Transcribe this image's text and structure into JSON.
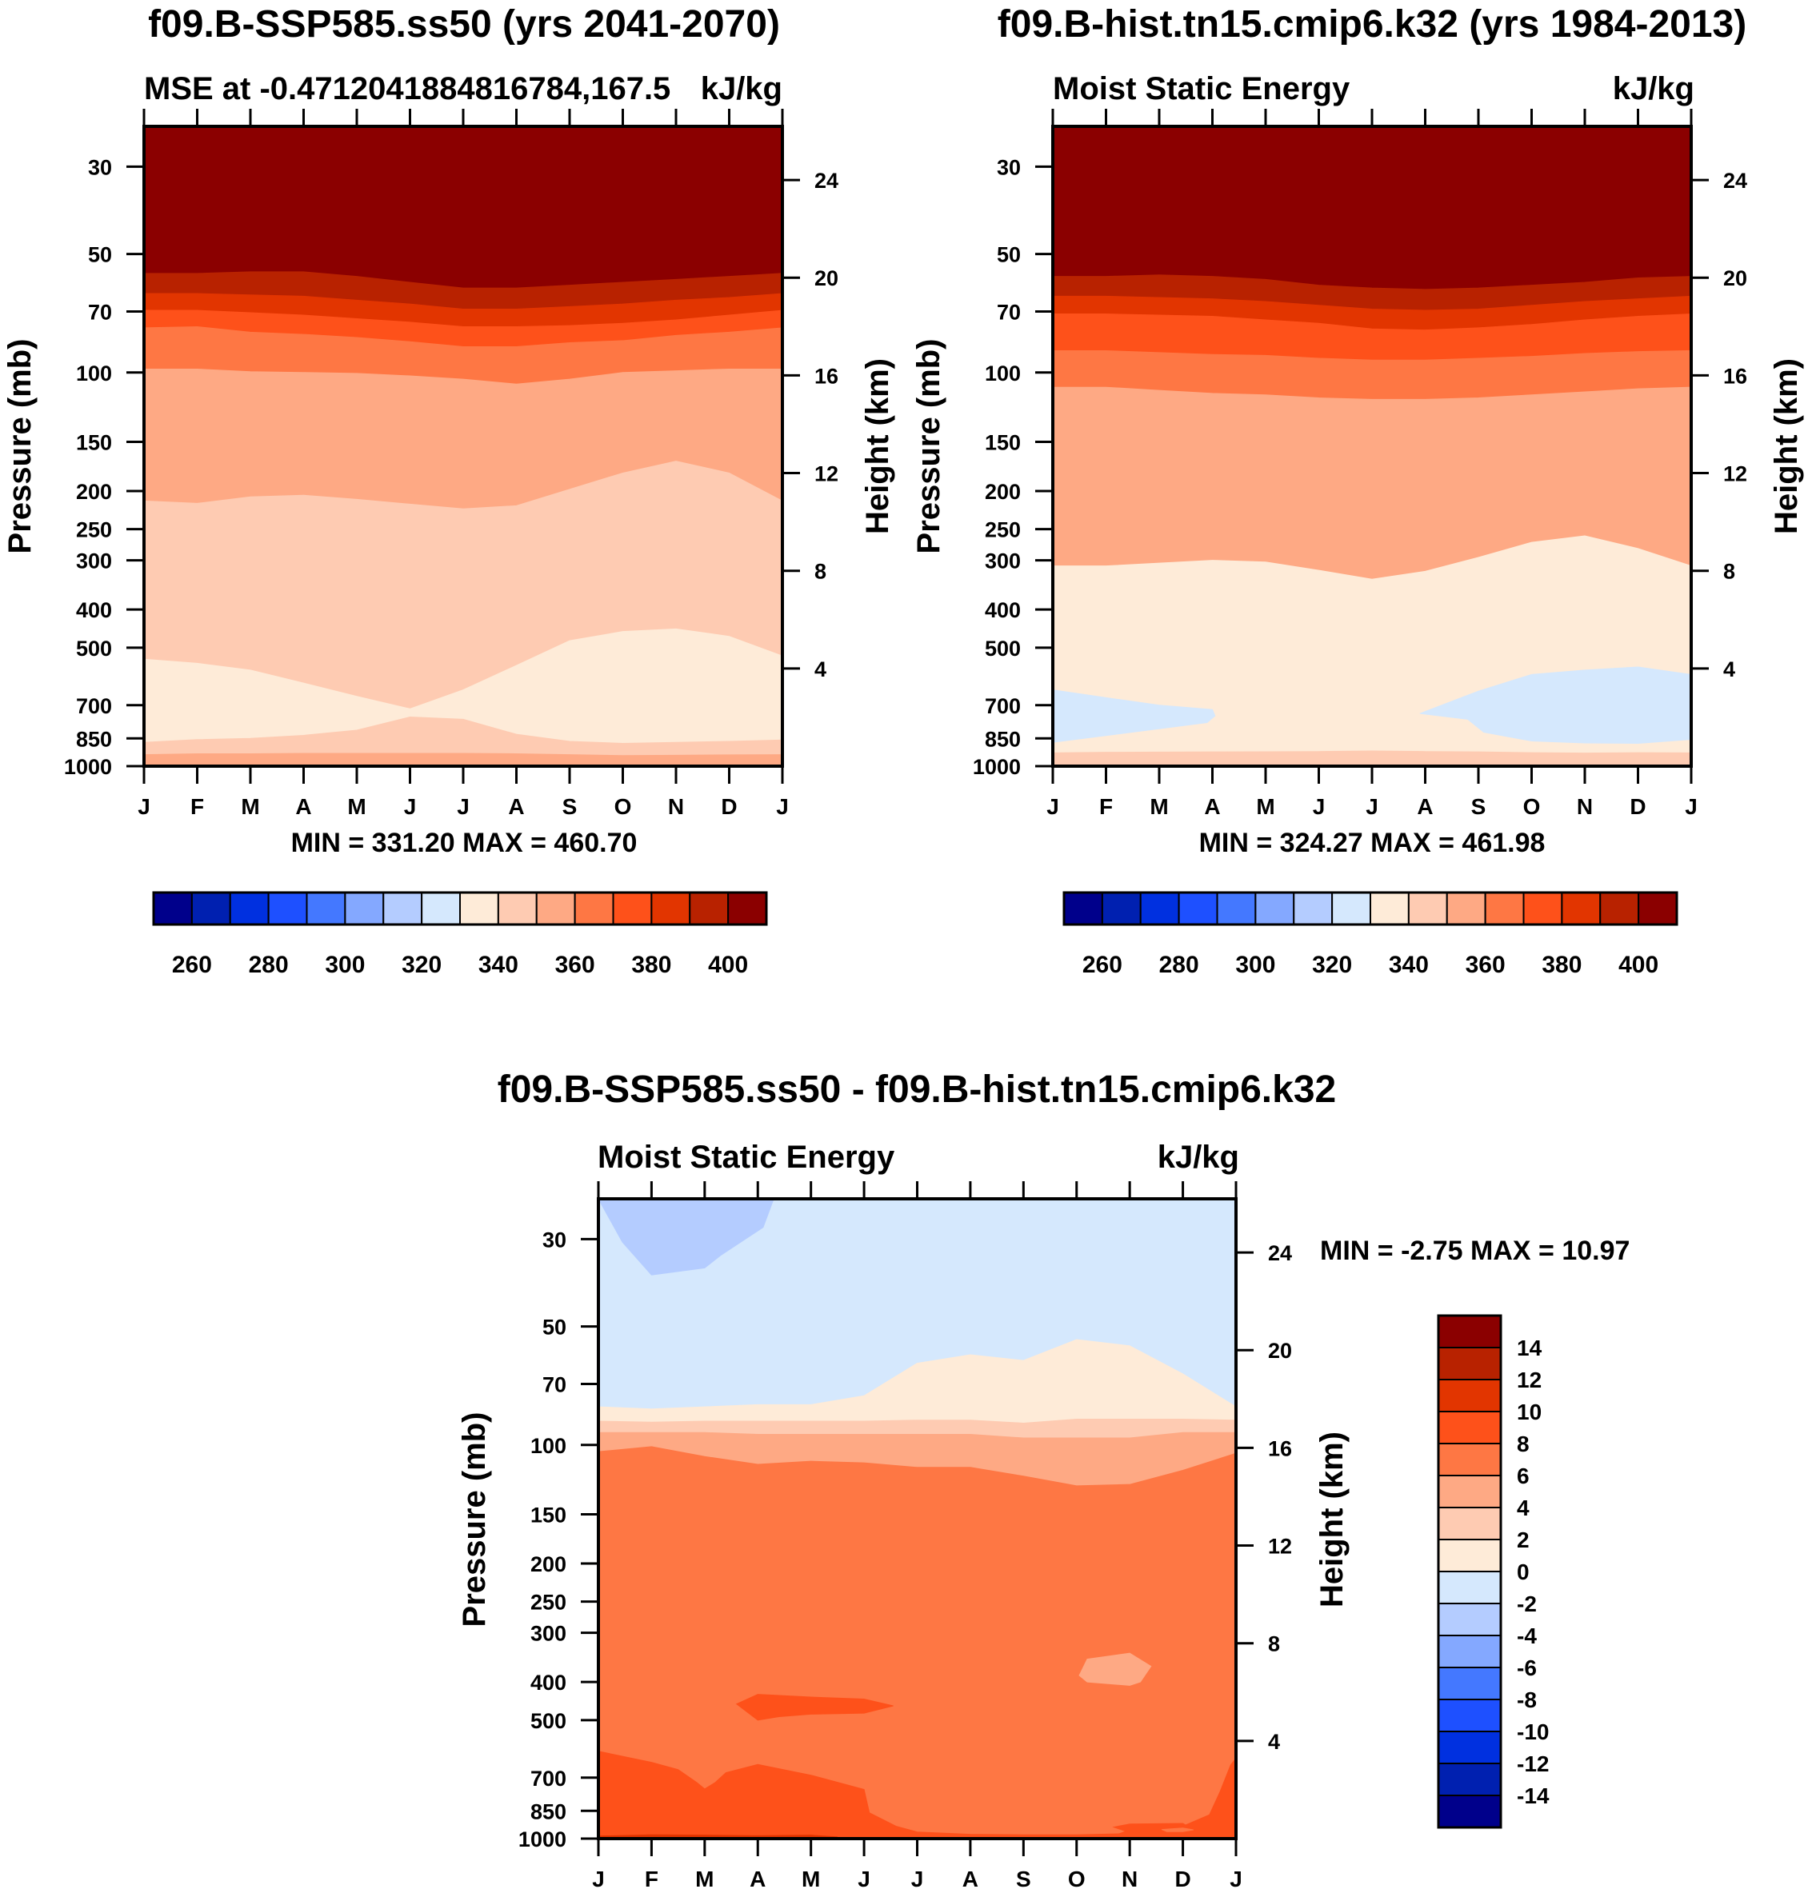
{
  "figure": {
    "variable_units": "kJ/kg",
    "pressure_axis_label": "Pressure (mb)",
    "height_axis_label": "Height (km)"
  },
  "chart_data": [
    {
      "id": "future",
      "type": "heatmap",
      "title": "f09.B-SSP585.ss50 (yrs 2041-2070)",
      "left_subtitle": "MSE at -0.4712041884816784,167.5",
      "right_subtitle": "kJ/kg",
      "xlabel": "",
      "ylabel": "Pressure (mb)",
      "ylabel_right": "Height (km)",
      "x_ticks": [
        "J",
        "F",
        "M",
        "A",
        "M",
        "J",
        "J",
        "A",
        "S",
        "O",
        "N",
        "D",
        "J"
      ],
      "y_ticks": [
        30,
        50,
        70,
        100,
        150,
        200,
        250,
        300,
        400,
        500,
        700,
        850,
        1000
      ],
      "y_ticks_right": [
        24,
        20,
        16,
        12,
        8,
        4
      ],
      "ylim": [
        1000,
        23.7
      ],
      "yscale": "log",
      "stats": "MIN = 331.20 MAX = 460.70",
      "colorbar": {
        "orientation": "horizontal",
        "levels": [
          260,
          270,
          280,
          290,
          300,
          310,
          320,
          330,
          340,
          350,
          360,
          370,
          380,
          390,
          400
        ],
        "labels": [
          "260",
          "280",
          "300",
          "320",
          "340",
          "360",
          "380",
          "400"
        ]
      },
      "bands_note": "Each band: color index into palette; top/bottom pressure boundaries (mb) at 13 monthly nodes Jan..Jan",
      "bands": [
        {
          "color": 15,
          "top": "ptop",
          "bottom": [
            56,
            56,
            55.5,
            55.5,
            57,
            59,
            61,
            61,
            60,
            59,
            58,
            57,
            56
          ]
        },
        {
          "color": 14,
          "top": "prev",
          "bottom": [
            63,
            63,
            63.5,
            64,
            65.5,
            67,
            69,
            69,
            68,
            67,
            65.5,
            64.5,
            63
          ]
        },
        {
          "color": 13,
          "top": "prev",
          "bottom": [
            69.5,
            69.5,
            70.5,
            71.5,
            73,
            74.5,
            76.5,
            76.5,
            76,
            75,
            73.5,
            71.5,
            69.5
          ]
        },
        {
          "color": 12,
          "top": "prev",
          "bottom": [
            77,
            76.5,
            79,
            80,
            81.5,
            83.5,
            86,
            86,
            84,
            83,
            80.5,
            79,
            77
          ]
        },
        {
          "color": 11,
          "top": "prev",
          "bottom": [
            98,
            98,
            99.5,
            100,
            100.5,
            102,
            104,
            107,
            104,
            100,
            99,
            98,
            98
          ]
        },
        {
          "color": 10,
          "top": "prev",
          "bottom": [
            212,
            215,
            207,
            205,
            210,
            216,
            222,
            218,
            198,
            180,
            168,
            180,
            212
          ]
        },
        {
          "color": 9,
          "top": "prev",
          "bottom": [
            535,
            548,
            570,
            615,
            665,
            715,
            640,
            555,
            480,
            455,
            448,
            468,
            525
          ]
        },
        {
          "color": 8,
          "top": "prev",
          "bottom": [
            870,
            856,
            850,
            835,
            810,
            750,
            760,
            830,
            865,
            875,
            870,
            865,
            858
          ]
        },
        {
          "color": 9,
          "top": "prev",
          "bottom": [
            935,
            930,
            930,
            928,
            928,
            928,
            928,
            930,
            935,
            940,
            938,
            936,
            935
          ]
        },
        {
          "color": 10,
          "top": "prev",
          "bottom": "pbot"
        }
      ]
    },
    {
      "id": "historical",
      "type": "heatmap",
      "title": "f09.B-hist.tn15.cmip6.k32 (yrs 1984-2013)",
      "left_subtitle": "Moist Static Energy",
      "right_subtitle": "kJ/kg",
      "xlabel": "",
      "ylabel": "Pressure (mb)",
      "ylabel_right": "Height (km)",
      "x_ticks": [
        "J",
        "F",
        "M",
        "A",
        "M",
        "J",
        "J",
        "A",
        "S",
        "O",
        "N",
        "D",
        "J"
      ],
      "y_ticks": [
        30,
        50,
        70,
        100,
        150,
        200,
        250,
        300,
        400,
        500,
        700,
        850,
        1000
      ],
      "y_ticks_right": [
        24,
        20,
        16,
        12,
        8,
        4
      ],
      "ylim": [
        1000,
        23.7
      ],
      "yscale": "log",
      "stats": "MIN = 324.27 MAX = 461.98",
      "colorbar": {
        "orientation": "horizontal",
        "levels": [
          260,
          270,
          280,
          290,
          300,
          310,
          320,
          330,
          340,
          350,
          360,
          370,
          380,
          390,
          400
        ],
        "labels": [
          "260",
          "280",
          "300",
          "320",
          "340",
          "360",
          "380",
          "400"
        ]
      },
      "bands": [
        {
          "color": 15,
          "top": "ptop",
          "bottom": [
            57,
            57,
            56.5,
            57,
            58,
            60,
            61,
            61.5,
            61,
            60,
            59,
            57.5,
            57
          ]
        },
        {
          "color": 14,
          "top": "prev",
          "bottom": [
            64,
            64,
            64.5,
            65,
            66,
            67.5,
            69,
            69.5,
            69,
            67.5,
            66,
            65,
            64
          ]
        },
        {
          "color": 13,
          "top": "prev",
          "bottom": [
            71,
            71,
            71.5,
            72,
            73.5,
            75,
            77.5,
            78,
            77,
            75.5,
            73.5,
            72,
            71
          ]
        },
        {
          "color": 12,
          "top": "prev",
          "bottom": [
            88,
            88,
            89,
            90,
            90.5,
            92,
            93,
            93,
            92,
            91,
            89.5,
            88.5,
            88
          ]
        },
        {
          "color": 11,
          "top": "prev",
          "bottom": [
            109,
            109,
            111,
            113,
            114,
            116,
            117,
            117,
            116,
            114,
            112,
            110,
            109
          ]
        },
        {
          "color": 10,
          "top": "prev",
          "bottom": [
            310,
            310,
            305,
            300,
            303,
            318,
            335,
            320,
            295,
            270,
            260,
            280,
            310
          ]
        },
        {
          "color": 8,
          "top": "prev",
          "bottom": "pbot",
          "holes": [
            {
              "x": [
                0,
                1,
                2,
                3,
                3.05,
                2.9,
                0
              ],
              "p": [
                640,
                670,
                700,
                718,
                745,
                775,
                870
              ]
            },
            {
              "x": [
                6.9,
                8,
                9,
                10,
                11,
                12,
                12,
                11,
                10,
                9,
                8.1,
                7.8
              ],
              "p": [
                735,
                645,
                585,
                570,
                560,
                585,
                855,
                875,
                873,
                863,
                820,
                760
              ]
            }
          ]
        },
        {
          "color": 9,
          "top": [
            925,
            922,
            921,
            920,
            919,
            918,
            915,
            918,
            920,
            924,
            926,
            924,
            925
          ],
          "bottom": "pbot"
        }
      ]
    },
    {
      "id": "difference",
      "type": "heatmap",
      "title": "f09.B-SSP585.ss50 - f09.B-hist.tn15.cmip6.k32",
      "left_subtitle": "Moist Static Energy",
      "right_subtitle": "kJ/kg",
      "xlabel": "",
      "ylabel": "Pressure (mb)",
      "ylabel_right": "Height (km)",
      "x_ticks": [
        "J",
        "F",
        "M",
        "A",
        "M",
        "J",
        "J",
        "A",
        "S",
        "O",
        "N",
        "D",
        "J"
      ],
      "y_ticks": [
        30,
        50,
        70,
        100,
        150,
        200,
        250,
        300,
        400,
        500,
        700,
        850,
        1000
      ],
      "y_ticks_right": [
        24,
        20,
        16,
        12,
        8,
        4
      ],
      "ylim": [
        1000,
        23.7
      ],
      "yscale": "log",
      "stats": "MIN =  -2.75 MAX =  10.97",
      "colorbar": {
        "orientation": "vertical",
        "levels": [
          -14,
          -12,
          -10,
          -8,
          -6,
          -4,
          -2,
          0,
          2,
          4,
          6,
          8,
          10,
          12,
          14
        ],
        "labels": [
          "-14",
          "-12",
          "-10",
          "-8",
          "-6",
          "-4",
          "-2",
          "0",
          "2",
          "4",
          "6",
          "8",
          "10",
          "12",
          "14"
        ]
      },
      "bands": [
        {
          "color": 7,
          "top": "ptop",
          "bottom": [
            80,
            81,
            80,
            79,
            79,
            75,
            62,
            59,
            61,
            54,
            56,
            66,
            80
          ]
        },
        {
          "color": 8,
          "top": "prev",
          "bottom": [
            87,
            87.5,
            87,
            87,
            87,
            87,
            86.5,
            86.5,
            88,
            86,
            86,
            86,
            86.5
          ]
        },
        {
          "color": 9,
          "top": "prev",
          "bottom": [
            93,
            93,
            93,
            94,
            94,
            94,
            94,
            94,
            96,
            96,
            96,
            93,
            93
          ]
        },
        {
          "color": 10,
          "top": "prev",
          "bottom": [
            104,
            101,
            107,
            112,
            110,
            111,
            114,
            114,
            120,
            127,
            126,
            116,
            105
          ]
        },
        {
          "color": 11,
          "top": "prev",
          "bottom": "pbot"
        }
      ],
      "patches": [
        {
          "color": 6,
          "x": [
            0,
            0.45,
            1,
            2,
            2.3,
            3.1,
            3.3,
            0
          ],
          "p": [
            23.7,
            30.5,
            37,
            35.5,
            33,
            28,
            23.7,
            23.7
          ]
        },
        {
          "color": 12,
          "x": [
            2.6,
            3,
            4,
            5,
            5.55,
            5,
            4,
            3.4,
            3
          ],
          "p": [
            455,
            430,
            437,
            442,
            460,
            480,
            483,
            490,
            500
          ]
        },
        {
          "color": 10,
          "x": [
            9.05,
            9.2,
            10,
            10.4,
            10.2,
            10,
            9.2
          ],
          "p": [
            385,
            350,
            338,
            365,
            400,
            408,
            400
          ]
        },
        {
          "color": 12,
          "x": [
            0,
            1,
            1.5,
            1.85,
            2,
            2.2,
            2.4,
            3,
            4,
            5,
            5.1,
            5.6,
            6,
            7,
            8,
            9,
            9.8,
            10,
            11,
            11.5,
            11.7,
            11.9,
            12,
            12,
            0
          ],
          "p": [
            600,
            640,
            668,
            720,
            748,
            720,
            680,
            648,
            690,
            750,
            860,
            930,
            962,
            975,
            978,
            978,
            972,
            950,
            930,
            870,
            760,
            650,
            625,
            1000,
            1000
          ]
        },
        {
          "color": 12,
          "x": [
            9.7,
            10,
            11,
            11.2,
            10.6,
            10,
            9.85
          ],
          "p": [
            935,
            918,
            915,
            950,
            955,
            965,
            950
          ]
        },
        {
          "color": 11,
          "x": [
            10.6,
            11,
            11.2,
            11,
            10.7
          ],
          "p": [
            948,
            940,
            950,
            960,
            960
          ]
        },
        {
          "color": 13,
          "x": [
            0,
            1,
            2,
            3,
            4,
            4.5,
            4,
            3,
            2,
            1,
            0
          ],
          "p": [
            985,
            978,
            980,
            983,
            980,
            990,
            995,
            995,
            995,
            992,
            990
          ]
        }
      ]
    }
  ],
  "palette": [
    "#00008b",
    "#0020b0",
    "#0030e0",
    "#1e50ff",
    "#4478ff",
    "#84a8ff",
    "#b4ccff",
    "#d5e8fd",
    "#feebd8",
    "#fecbb2",
    "#fea984",
    "#fe7744",
    "#fe511a",
    "#e23500",
    "#b82200",
    "#8b0000"
  ]
}
